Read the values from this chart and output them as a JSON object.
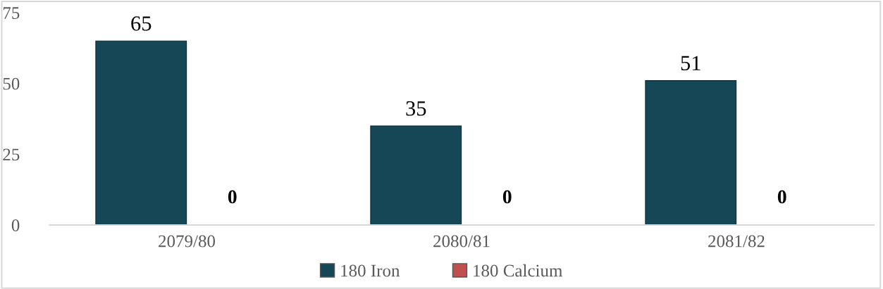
{
  "chart_data": {
    "type": "bar",
    "categories": [
      "2079/80",
      "2080/81",
      "2081/82"
    ],
    "series": [
      {
        "name": "180 Iron",
        "color": "#154757",
        "values": [
          65,
          35,
          51
        ]
      },
      {
        "name": "180 Calcium",
        "color": "#c0504d",
        "values": [
          0,
          0,
          0
        ]
      }
    ],
    "ylim": [
      0,
      75
    ],
    "yticks": [
      0,
      25,
      50,
      75
    ],
    "grid": false,
    "legend": "bottom",
    "data_labels": true
  }
}
